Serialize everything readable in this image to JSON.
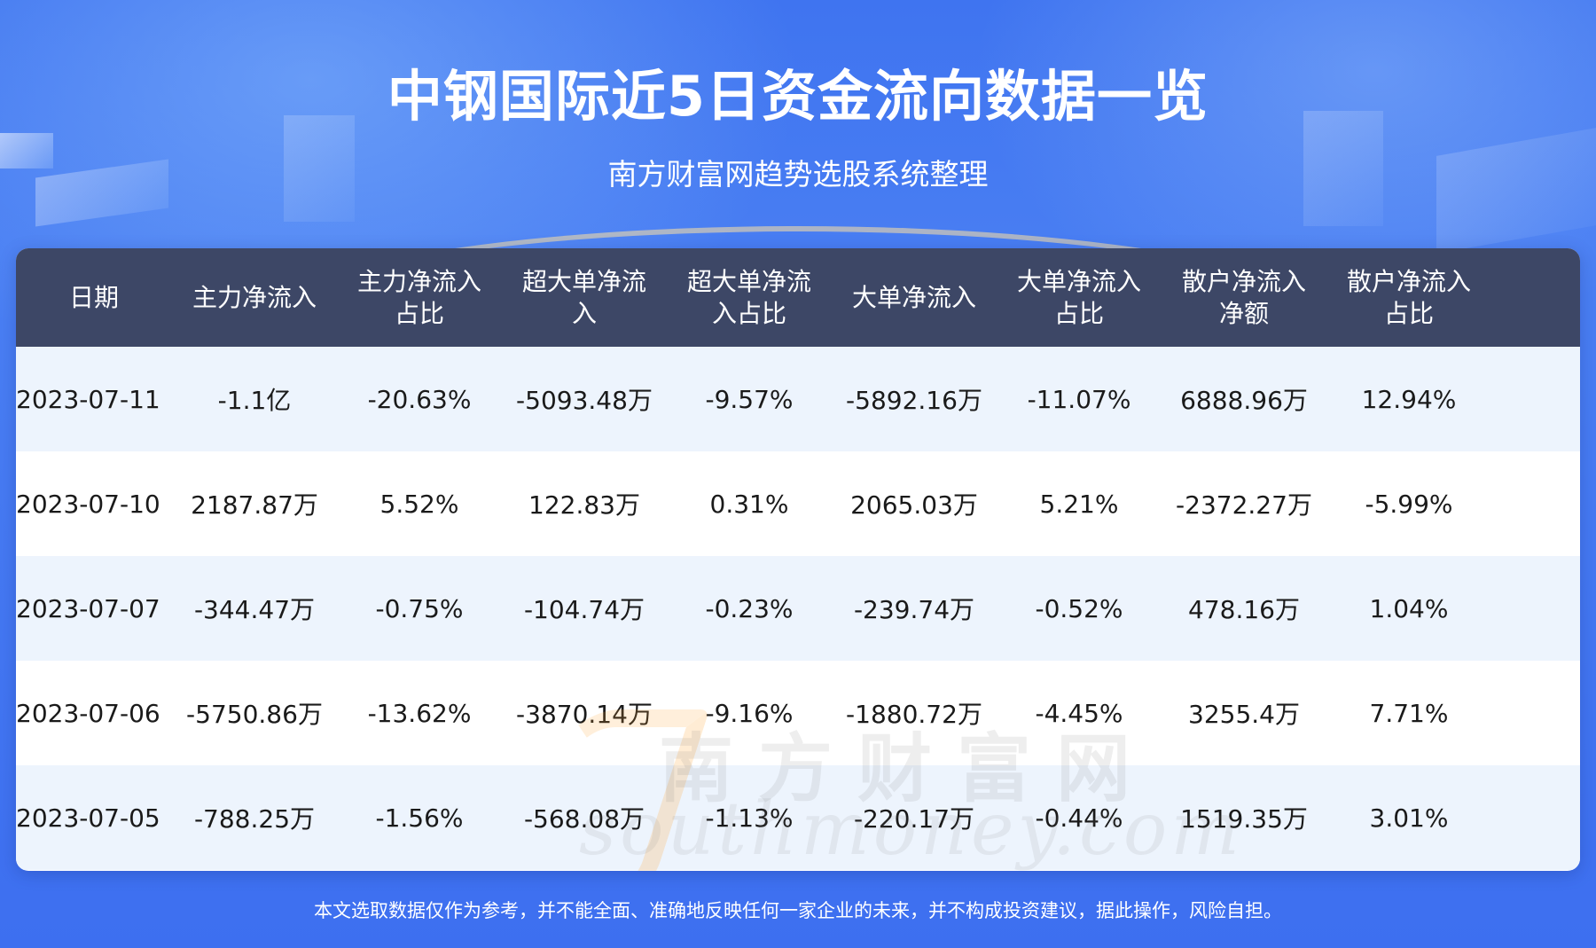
{
  "header": {
    "title": "中钢国际近5日资金流向数据一览",
    "subtitle": "南方财富网趋势选股系统整理"
  },
  "table": {
    "columns": [
      [
        "日期"
      ],
      [
        "主力净流入"
      ],
      [
        "主力净流入",
        "占比"
      ],
      [
        "超大单净流",
        "入"
      ],
      [
        "超大单净流",
        "入占比"
      ],
      [
        "大单净流入"
      ],
      [
        "大单净流入",
        "占比"
      ],
      [
        "散户净流入",
        "净额"
      ],
      [
        "散户净流入",
        "占比"
      ]
    ],
    "rows": [
      [
        "2023-07-11",
        "-1.1亿",
        "-20.63%",
        "-5093.48万",
        "-9.57%",
        "-5892.16万",
        "-11.07%",
        "6888.96万",
        "12.94%"
      ],
      [
        "2023-07-10",
        "2187.87万",
        "5.52%",
        "122.83万",
        "0.31%",
        "2065.03万",
        "5.21%",
        "-2372.27万",
        "-5.99%"
      ],
      [
        "2023-07-07",
        "-344.47万",
        "-0.75%",
        "-104.74万",
        "-0.23%",
        "-239.74万",
        "-0.52%",
        "478.16万",
        "1.04%"
      ],
      [
        "2023-07-06",
        "-5750.86万",
        "-13.62%",
        "-3870.14万",
        "-9.16%",
        "-1880.72万",
        "-4.45%",
        "3255.4万",
        "7.71%"
      ],
      [
        "2023-07-05",
        "-788.25万",
        "-1.56%",
        "-568.08万",
        "-1.13%",
        "-220.17万",
        "-0.44%",
        "1519.35万",
        "3.01%"
      ]
    ]
  },
  "watermark": {
    "chinese": "南方财富网",
    "english": "southmoney.com"
  },
  "footer": {
    "disclaimer": "本文选取数据仅作为参考，并不能全面、准确地反映任何一家企业的未来，并不构成投资建议，据此操作，风险自担。"
  },
  "colors": {
    "background": "#4a7ff3",
    "header_row": "#3d4766",
    "row_alt": "#edf4fd",
    "text": "#1a1a1a"
  }
}
